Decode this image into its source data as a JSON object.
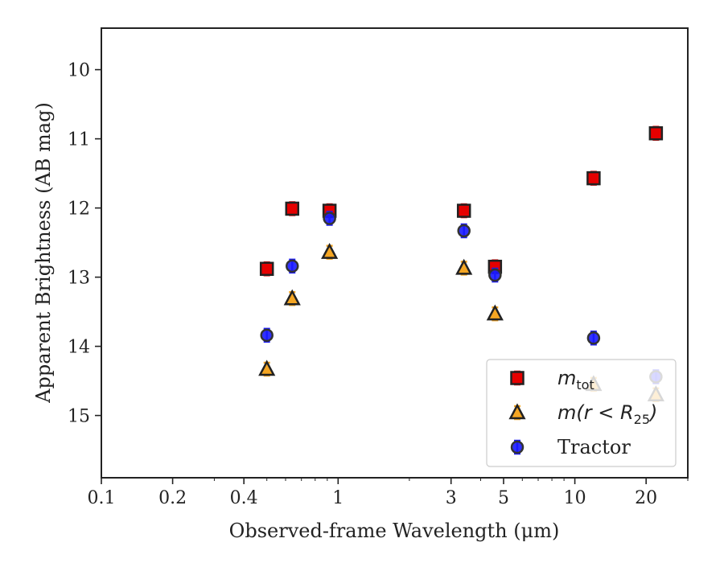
{
  "chart_data": {
    "type": "scatter",
    "xlabel": "Observed-frame Wavelength (μm)",
    "ylabel": "Apparent Brightness (AB mag)",
    "xscale": "log",
    "xlim": [
      0.1,
      30
    ],
    "ylim": [
      15.9,
      9.4
    ],
    "y_inverted": true,
    "grid": false,
    "legend_position": "lower-right",
    "x_ticks": [
      {
        "value": 0.1,
        "label": "0.1"
      },
      {
        "value": 0.2,
        "label": "0.2"
      },
      {
        "value": 0.4,
        "label": "0.4"
      },
      {
        "value": 1,
        "label": "1"
      },
      {
        "value": 3,
        "label": "3"
      },
      {
        "value": 5,
        "label": "5"
      },
      {
        "value": 10,
        "label": "10"
      },
      {
        "value": 20,
        "label": "20"
      }
    ],
    "y_ticks": [
      10,
      11,
      12,
      13,
      14,
      15
    ],
    "series": [
      {
        "name": "m_tot",
        "legend_main": "m",
        "legend_sub": "tot",
        "marker": "square",
        "color": "#e60000",
        "edge": "#222222",
        "errcolor": "#e60000",
        "points": [
          {
            "x": 0.5,
            "y": 12.88
          },
          {
            "x": 0.64,
            "y": 12.01
          },
          {
            "x": 0.92,
            "y": 12.04
          },
          {
            "x": 3.4,
            "y": 12.04
          },
          {
            "x": 4.6,
            "y": 12.85
          },
          {
            "x": 12.0,
            "y": 11.57
          },
          {
            "x": 22.0,
            "y": 10.92
          }
        ]
      },
      {
        "name": "m(r<R_25)",
        "legend_main": "m(r < R",
        "legend_sub": "25",
        "legend_tail": ")",
        "marker": "triangle",
        "color": "#f5a623",
        "edge": "#222222",
        "errcolor": "#f5a623",
        "points": [
          {
            "x": 0.5,
            "y": 14.33
          },
          {
            "x": 0.64,
            "y": 13.31
          },
          {
            "x": 0.92,
            "y": 12.64
          },
          {
            "x": 3.4,
            "y": 12.87
          },
          {
            "x": 4.6,
            "y": 13.53
          },
          {
            "x": 12.0,
            "y": 14.55
          },
          {
            "x": 22.0,
            "y": 14.7
          }
        ]
      },
      {
        "name": "Tractor",
        "legend_main": "Tractor",
        "marker": "circle",
        "color": "#1a1aff",
        "edge": "#333333",
        "errcolor": "#1a1aff",
        "points": [
          {
            "x": 0.5,
            "y": 13.84
          },
          {
            "x": 0.64,
            "y": 12.84
          },
          {
            "x": 0.92,
            "y": 12.15
          },
          {
            "x": 3.4,
            "y": 12.33
          },
          {
            "x": 4.6,
            "y": 12.97
          },
          {
            "x": 12.0,
            "y": 13.88
          },
          {
            "x": 22.0,
            "y": 14.44
          }
        ]
      }
    ]
  }
}
